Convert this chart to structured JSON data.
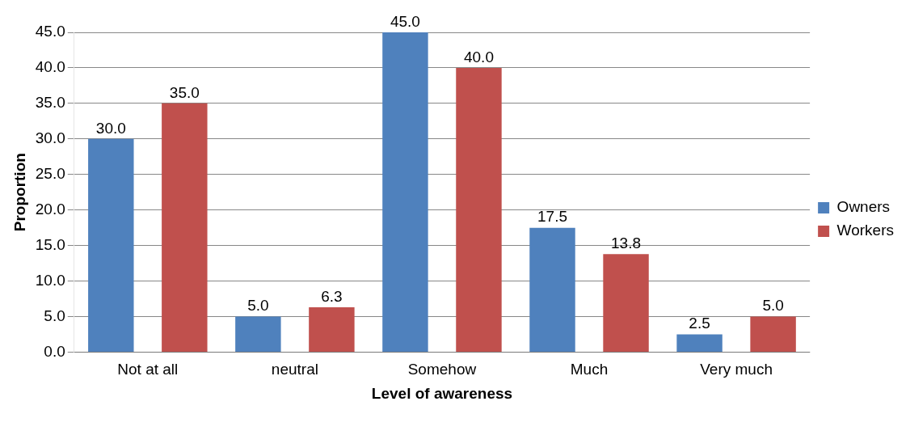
{
  "chart_data": {
    "type": "bar",
    "xlabel": "Level of awareness",
    "ylabel": "Proportion",
    "categories": [
      "Not at all",
      "neutral",
      "Somehow",
      "Much",
      "Very much"
    ],
    "series": [
      {
        "name": "Owners",
        "color": "#4f81bd",
        "values": [
          30.0,
          5.0,
          45.0,
          17.5,
          2.5
        ],
        "value_labels": [
          "30.0",
          "5.0",
          "45.0",
          "17.5",
          "2.5"
        ]
      },
      {
        "name": "Workers",
        "color": "#c0504d",
        "values": [
          35.0,
          6.3,
          40.0,
          13.8,
          5.0
        ],
        "value_labels": [
          "35.0",
          "6.3",
          "40.0",
          "13.8",
          "5.0"
        ]
      }
    ],
    "ylim": [
      0,
      45
    ],
    "yticks": [
      {
        "value": 0,
        "label": "0.0"
      },
      {
        "value": 5,
        "label": "5.0"
      },
      {
        "value": 10,
        "label": "10.0"
      },
      {
        "value": 15,
        "label": "15.0"
      },
      {
        "value": 20,
        "label": "20.0"
      },
      {
        "value": 25,
        "label": "25.0"
      },
      {
        "value": 30,
        "label": "30.0"
      },
      {
        "value": 35,
        "label": "35.0"
      },
      {
        "value": 40,
        "label": "40.0"
      },
      {
        "value": 45,
        "label": "45.0"
      }
    ],
    "grid": "y",
    "legend": "right"
  }
}
